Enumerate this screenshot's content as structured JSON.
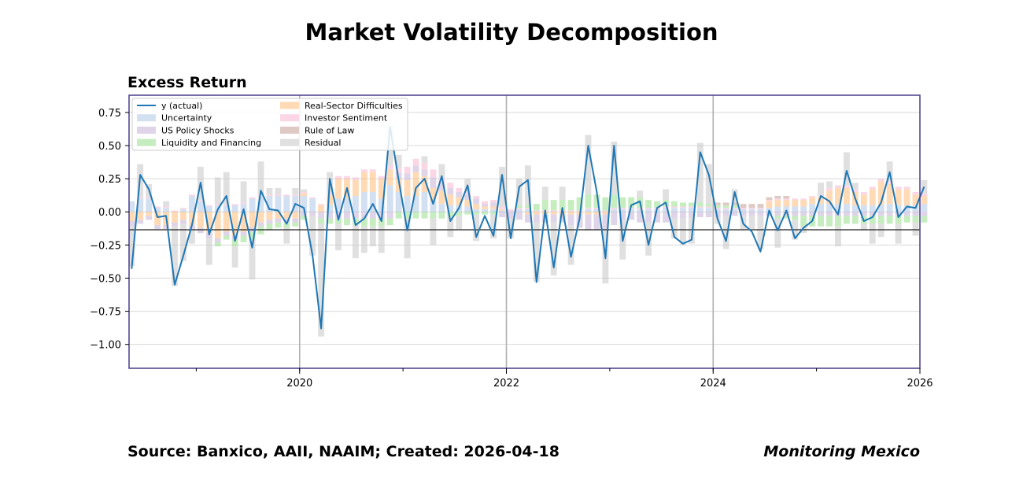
{
  "title": "Market Volatility Decomposition",
  "subtitle": "Excess Return",
  "footer": {
    "source": "Source: Banxico, AAII, NAAIM; Created: 2026-04-18",
    "brand": "Monitoring Mexico"
  },
  "chart_data": {
    "type": "stacked-bar-with-line",
    "title": "Excess Return",
    "xlabel": "",
    "ylabel": "",
    "xlim": [
      2018.35,
      2026.0
    ],
    "ylim": [
      -1.18,
      0.88
    ],
    "grid": true,
    "legend_position": "top-left",
    "x_ticks": [
      2020,
      2022,
      2024,
      2026
    ],
    "x_tick_labels": [
      "2020",
      "2022",
      "2024",
      "2026"
    ],
    "y_ticks": [
      0.75,
      0.5,
      0.25,
      0.0,
      -0.25,
      -0.5,
      -0.75,
      -1.0
    ],
    "y_tick_labels": [
      "0.75",
      "0.50",
      "0.25",
      "0.00",
      "−0.25",
      "−0.50",
      "−0.75",
      "−1.00"
    ],
    "baseline": -0.135,
    "year_lines": [
      2020,
      2022,
      2024
    ],
    "start": 2018.375,
    "step": 0.08333,
    "line": {
      "name": "y (actual)",
      "color": "#1f77b4",
      "values": [
        -0.43,
        0.28,
        0.17,
        -0.04,
        -0.03,
        -0.55,
        -0.33,
        -0.1,
        0.22,
        -0.17,
        0.02,
        0.12,
        -0.22,
        0.02,
        -0.27,
        0.16,
        0.02,
        0.01,
        -0.09,
        0.06,
        0.03,
        -0.33,
        -0.88,
        0.25,
        -0.06,
        0.18,
        -0.1,
        -0.05,
        0.06,
        -0.07,
        0.64,
        0.24,
        -0.14,
        0.18,
        0.25,
        0.06,
        0.27,
        -0.07,
        0.03,
        0.2,
        -0.19,
        -0.03,
        -0.18,
        0.28,
        -0.2,
        0.19,
        0.24,
        -0.53,
        0.01,
        -0.42,
        0.03,
        -0.34,
        -0.05,
        0.5,
        0.15,
        -0.35,
        0.5,
        -0.22,
        0.05,
        0.08,
        -0.25,
        0.03,
        0.07,
        -0.19,
        -0.24,
        -0.21,
        0.45,
        0.28,
        -0.05,
        -0.22,
        0.15,
        -0.09,
        -0.15,
        -0.3,
        0.01,
        -0.14,
        0.01,
        -0.2,
        -0.12,
        -0.07,
        0.12,
        0.08,
        -0.02,
        0.31,
        0.1,
        -0.07,
        -0.04,
        0.07,
        0.3,
        -0.04,
        0.04,
        0.03,
        0.19
      ]
    },
    "series": [
      {
        "name": "Uncertainty",
        "color": "#aec7e8",
        "values": [
          0.08,
          0.1,
          0.1,
          0.03,
          0.03,
          0.0,
          0.02,
          0.12,
          0.08,
          0.04,
          0.05,
          0.05,
          0.05,
          0.06,
          0.1,
          0.12,
          0.12,
          0.12,
          0.12,
          0.12,
          0.12,
          0.1,
          0.0,
          0.05,
          0.1,
          0.1,
          0.12,
          0.15,
          0.15,
          0.1,
          0.2,
          0.15,
          0.12,
          0.12,
          0.15,
          0.08,
          0.06,
          0.05,
          0.05,
          0.04,
          0.02,
          0.02,
          0.02,
          0.01,
          0.0,
          0.02,
          0.02,
          0.0,
          0.0,
          0.0,
          0.0,
          0.0,
          0.0,
          0.02,
          0.02,
          0.0,
          0.02,
          0.02,
          0.02,
          0.02,
          0.02,
          0.02,
          0.03,
          0.03,
          0.03,
          0.03,
          0.03,
          0.03,
          0.02,
          0.02,
          0.02,
          0.02,
          0.02,
          0.02,
          0.03,
          0.04,
          0.04,
          0.04,
          0.04,
          0.06,
          0.06,
          0.06,
          0.06,
          0.06,
          0.05,
          0.05,
          0.05,
          0.05,
          0.06,
          0.05,
          0.05,
          0.05,
          0.06
        ]
      },
      {
        "name": "Real-Sector Difficulties",
        "color": "#ffbb78",
        "values": [
          -0.07,
          -0.06,
          -0.03,
          -0.1,
          -0.1,
          -0.08,
          -0.06,
          -0.1,
          -0.12,
          -0.16,
          -0.2,
          -0.15,
          -0.18,
          -0.15,
          -0.12,
          -0.08,
          -0.06,
          -0.05,
          -0.05,
          -0.05,
          0.02,
          0.0,
          0.05,
          0.08,
          0.15,
          0.15,
          0.12,
          0.15,
          0.15,
          0.15,
          0.12,
          0.1,
          0.12,
          0.18,
          0.12,
          0.1,
          0.1,
          0.08,
          0.06,
          0.05,
          0.04,
          0.02,
          0.02,
          0.01,
          0.0,
          0.0,
          -0.02,
          -0.02,
          -0.02,
          -0.02,
          -0.02,
          -0.02,
          -0.02,
          -0.02,
          -0.02,
          -0.02,
          0.0,
          0.0,
          0.0,
          0.0,
          0.0,
          0.0,
          0.0,
          0.0,
          0.0,
          0.0,
          0.0,
          0.0,
          0.0,
          0.0,
          0.0,
          0.0,
          0.0,
          0.0,
          0.05,
          0.05,
          0.05,
          0.05,
          0.05,
          0.05,
          0.05,
          0.1,
          0.12,
          0.12,
          0.1,
          0.08,
          0.12,
          0.18,
          0.15,
          0.12,
          0.12,
          0.08,
          0.06
        ]
      },
      {
        "name": "US Policy Shocks",
        "color": "#c5b0d5",
        "values": [
          -0.04,
          -0.03,
          -0.03,
          -0.03,
          -0.03,
          -0.03,
          -0.03,
          -0.04,
          -0.04,
          -0.04,
          -0.03,
          -0.03,
          -0.03,
          -0.03,
          -0.03,
          -0.03,
          -0.03,
          -0.03,
          -0.03,
          -0.03,
          -0.03,
          -0.03,
          -0.05,
          -0.05,
          -0.05,
          -0.05,
          -0.05,
          -0.05,
          -0.05,
          -0.05,
          -0.05,
          0.05,
          0.05,
          0.05,
          0.05,
          0.08,
          0.06,
          0.05,
          0.04,
          0.04,
          0.04,
          0.02,
          0.03,
          -0.04,
          -0.05,
          -0.06,
          -0.06,
          -0.06,
          -0.06,
          -0.06,
          -0.06,
          -0.08,
          -0.1,
          -0.12,
          -0.12,
          -0.12,
          -0.1,
          -0.06,
          -0.06,
          -0.08,
          -0.08,
          -0.08,
          -0.08,
          -0.05,
          -0.05,
          -0.04,
          -0.04,
          -0.04,
          -0.04,
          -0.03,
          -0.03,
          -0.03,
          -0.03,
          -0.03,
          -0.03,
          -0.03,
          -0.03,
          -0.03,
          -0.03,
          -0.03,
          -0.03,
          -0.03,
          -0.03,
          -0.03,
          -0.03,
          -0.03,
          -0.03,
          -0.03,
          -0.03,
          -0.03,
          -0.03,
          -0.03,
          -0.03
        ]
      },
      {
        "name": "Investor Sentiment",
        "color": "#f7b6d2",
        "values": [
          0.0,
          0.01,
          0.01,
          0.01,
          0.01,
          0.01,
          0.01,
          0.01,
          0.01,
          0.01,
          0.01,
          0.01,
          0.01,
          0.01,
          0.01,
          0.01,
          0.01,
          0.01,
          0.01,
          0.01,
          0.01,
          0.01,
          0.01,
          0.01,
          0.02,
          0.02,
          0.02,
          0.02,
          0.02,
          0.02,
          0.03,
          0.03,
          0.05,
          0.05,
          0.05,
          0.06,
          0.04,
          0.04,
          0.03,
          0.02,
          0.02,
          0.02,
          0.02,
          0.02,
          0.02,
          0.01,
          0.01,
          0.01,
          0.01,
          0.01,
          0.01,
          0.01,
          0.01,
          0.01,
          0.01,
          0.01,
          0.01,
          0.01,
          0.01,
          0.01,
          0.01,
          0.01,
          0.01,
          0.01,
          0.01,
          0.01,
          0.01,
          0.01,
          0.01,
          0.01,
          0.01,
          0.01,
          0.01,
          0.01,
          0.01,
          0.01,
          0.01,
          0.01,
          0.01,
          0.01,
          0.01,
          0.02,
          0.02,
          0.02,
          0.02,
          0.02,
          0.02,
          0.02,
          0.02,
          0.02,
          0.02,
          0.02,
          0.02
        ]
      },
      {
        "name": "Liquidity and Financing",
        "color": "#98df8a",
        "values": [
          0.0,
          0.0,
          0.0,
          0.0,
          0.0,
          0.0,
          0.0,
          0.0,
          0.0,
          0.0,
          -0.03,
          -0.03,
          -0.05,
          -0.05,
          -0.06,
          -0.06,
          -0.05,
          -0.04,
          -0.04,
          -0.03,
          -0.03,
          0.0,
          -0.04,
          -0.04,
          -0.04,
          -0.05,
          -0.05,
          -0.06,
          -0.06,
          -0.06,
          -0.05,
          -0.05,
          -0.05,
          -0.05,
          -0.05,
          -0.05,
          -0.05,
          -0.04,
          -0.03,
          -0.02,
          -0.02,
          -0.02,
          -0.02,
          0.0,
          0.0,
          0.02,
          0.02,
          0.05,
          0.08,
          0.08,
          0.08,
          0.08,
          0.1,
          0.1,
          0.1,
          0.1,
          0.1,
          0.08,
          0.08,
          0.08,
          0.06,
          0.05,
          0.05,
          0.04,
          0.03,
          0.03,
          0.03,
          0.02,
          0.02,
          0.02,
          0.02,
          0.0,
          0.0,
          0.0,
          0.0,
          -0.02,
          -0.02,
          -0.03,
          -0.08,
          -0.08,
          -0.08,
          -0.08,
          -0.08,
          -0.06,
          -0.06,
          -0.06,
          -0.06,
          -0.06,
          -0.06,
          -0.06,
          -0.05,
          -0.05,
          -0.05
        ]
      },
      {
        "name": "Rule of Law",
        "color": "#c49c94",
        "values": [
          0.0,
          0.0,
          0.0,
          0.0,
          0.0,
          0.0,
          0.0,
          0.0,
          0.0,
          0.0,
          0.0,
          0.0,
          0.0,
          0.0,
          0.0,
          0.0,
          0.0,
          0.0,
          0.0,
          0.0,
          0.0,
          0.0,
          0.0,
          0.0,
          0.0,
          0.0,
          0.0,
          0.0,
          0.0,
          0.0,
          0.0,
          0.0,
          0.0,
          0.0,
          0.0,
          0.0,
          0.0,
          0.0,
          0.0,
          0.0,
          0.0,
          0.0,
          0.0,
          0.0,
          0.0,
          0.0,
          0.0,
          0.0,
          0.0,
          0.0,
          0.0,
          0.0,
          0.0,
          0.0,
          0.0,
          0.0,
          0.0,
          0.0,
          0.0,
          0.0,
          0.0,
          0.0,
          0.0,
          0.0,
          0.0,
          0.0,
          0.0,
          0.0,
          0.02,
          0.02,
          0.02,
          0.03,
          0.03,
          0.03,
          0.02,
          0.02,
          0.02,
          0.0,
          0.0,
          0.0,
          0.0,
          0.0,
          0.0,
          0.0,
          0.0,
          0.0,
          0.0,
          0.0,
          0.0,
          0.0,
          0.0,
          0.0,
          0.0
        ]
      },
      {
        "name": "Residual",
        "color": "#c7c7c7",
        "values": [
          -0.3,
          0.25,
          0.1,
          0.0,
          0.04,
          -0.45,
          -0.28,
          -0.1,
          0.25,
          -0.2,
          0.2,
          0.24,
          -0.16,
          0.16,
          -0.3,
          0.25,
          0.05,
          0.05,
          -0.12,
          0.05,
          0.02,
          -0.3,
          -0.85,
          0.16,
          -0.2,
          0.0,
          -0.25,
          -0.2,
          -0.15,
          -0.2,
          0.3,
          0.1,
          -0.3,
          0.0,
          0.05,
          -0.2,
          0.1,
          -0.15,
          -0.1,
          0.1,
          -0.2,
          0.0,
          -0.18,
          0.3,
          -0.15,
          0.2,
          0.3,
          -0.45,
          0.1,
          -0.4,
          0.1,
          -0.3,
          0.0,
          0.45,
          0.0,
          -0.4,
          0.4,
          -0.3,
          0.0,
          0.05,
          -0.25,
          0.0,
          0.08,
          -0.15,
          -0.2,
          -0.2,
          0.45,
          0.3,
          -0.05,
          -0.25,
          0.1,
          -0.1,
          -0.1,
          -0.25,
          0.0,
          -0.22,
          0.0,
          -0.15,
          -0.05,
          0.0,
          0.1,
          0.05,
          -0.15,
          0.25,
          0.05,
          -0.05,
          -0.15,
          -0.1,
          0.15,
          -0.15,
          0.0,
          -0.1,
          0.1
        ]
      }
    ],
    "legend_order": [
      "y (actual)",
      "Real-Sector Difficulties",
      "Uncertainty",
      "Investor Sentiment",
      "US Policy Shocks",
      "Rule of Law",
      "Liquidity and Financing",
      "Residual"
    ]
  }
}
